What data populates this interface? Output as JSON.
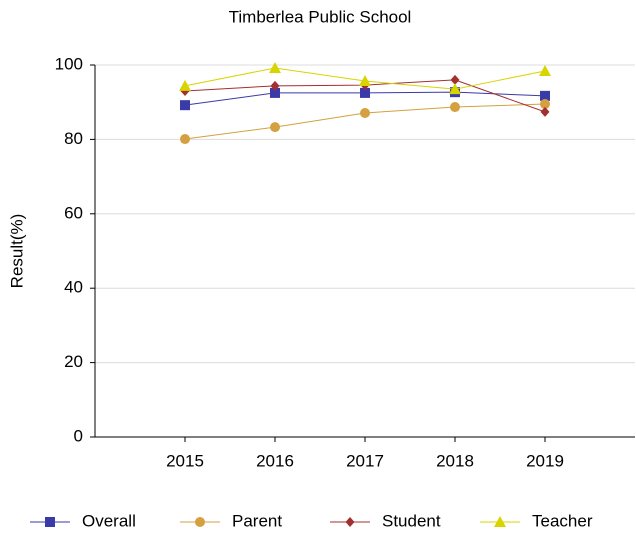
{
  "chart_data": {
    "type": "line",
    "title": "Timberlea Public School",
    "y_label": "Result(%)",
    "categories": [
      "2015",
      "2016",
      "2017",
      "2018",
      "2019"
    ],
    "series": [
      {
        "name": "Overall",
        "color": "#3a3aa8",
        "marker": "square",
        "values": [
          89.2,
          92.5,
          92.5,
          92.7,
          91.7
        ]
      },
      {
        "name": "Parent",
        "color": "#d4a040",
        "marker": "circle",
        "values": [
          80.1,
          83.3,
          87.1,
          88.7,
          89.5
        ]
      },
      {
        "name": "Student",
        "color": "#a33030",
        "marker": "diamond",
        "values": [
          93.0,
          94.4,
          94.6,
          96.0,
          87.4
        ]
      },
      {
        "name": "Teacher",
        "color": "#d8d400",
        "marker": "triangle",
        "values": [
          94.4,
          99.2,
          95.7,
          93.5,
          98.4
        ]
      }
    ],
    "ylim": [
      0,
      100
    ],
    "yticks": [
      0,
      20,
      40,
      60,
      80,
      100
    ],
    "grid": true,
    "legend": "bottom"
  }
}
